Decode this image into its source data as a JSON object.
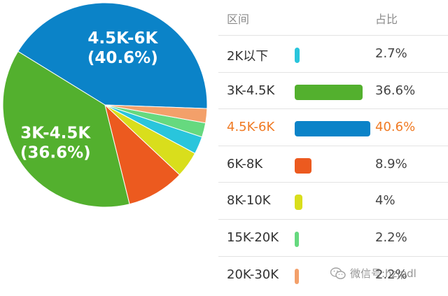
{
  "chart_data": {
    "type": "pie",
    "slices": [
      {
        "label": "2K以下",
        "value": 2.7,
        "display": "2.7%",
        "color": "#29c5dc"
      },
      {
        "label": "3K-4.5K",
        "value": 36.6,
        "display": "36.6%",
        "color": "#53b02e"
      },
      {
        "label": "4.5K-6K",
        "value": 40.6,
        "display": "40.6%",
        "color": "#0b83c8",
        "highlight": true
      },
      {
        "label": "6K-8K",
        "value": 8.9,
        "display": "8.9%",
        "color": "#ec5a1f"
      },
      {
        "label": "8K-10K",
        "value": 4,
        "display": "4%",
        "color": "#d9de1c"
      },
      {
        "label": "15K-20K",
        "value": 2.2,
        "display": "2.2%",
        "color": "#66d97f"
      },
      {
        "label": "20K-30K",
        "value": 2.2,
        "display": "2.2%",
        "color": "#f3a06a"
      }
    ],
    "slice_labels": [
      {
        "slice": "4.5K-6K",
        "text": "4.5K-6K",
        "percent": "(40.6%)"
      },
      {
        "slice": "3K-4.5K",
        "text": "3K-4.5K",
        "percent": "(36.6%)"
      }
    ],
    "highlight_color": "#f07a23"
  },
  "table": {
    "header_range": "区间",
    "header_share": "占比"
  },
  "watermark": {
    "text": "微信号:hzjpdl",
    "icon": "wechat-icon"
  }
}
